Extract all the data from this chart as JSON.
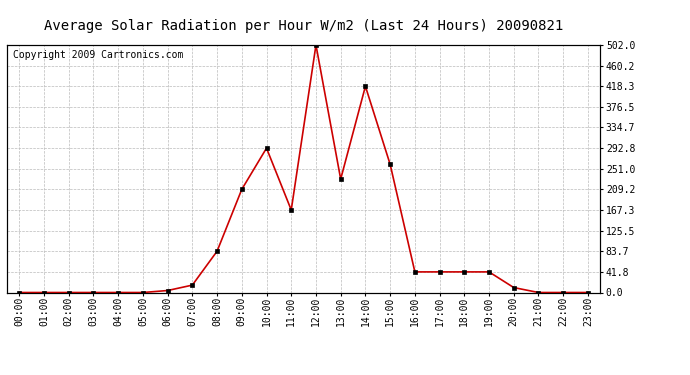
{
  "title": "Average Solar Radiation per Hour W/m2 (Last 24 Hours) 20090821",
  "copyright": "Copyright 2009 Cartronics.com",
  "hours": [
    "00:00",
    "01:00",
    "02:00",
    "03:00",
    "04:00",
    "05:00",
    "06:00",
    "07:00",
    "08:00",
    "09:00",
    "10:00",
    "11:00",
    "12:00",
    "13:00",
    "14:00",
    "15:00",
    "16:00",
    "17:00",
    "18:00",
    "19:00",
    "20:00",
    "21:00",
    "22:00",
    "23:00"
  ],
  "values": [
    0,
    0,
    0,
    0,
    0,
    0,
    4,
    15,
    83.7,
    209.2,
    292.8,
    167.3,
    502.0,
    230.0,
    418.3,
    260.0,
    41.8,
    41.8,
    41.8,
    41.8,
    10,
    0,
    0,
    0
  ],
  "line_color": "#cc0000",
  "marker_color": "#000000",
  "background_color": "#ffffff",
  "grid_color": "#bbbbbb",
  "yticks": [
    0.0,
    41.8,
    83.7,
    125.5,
    167.3,
    209.2,
    251.0,
    292.8,
    334.7,
    376.5,
    418.3,
    460.2,
    502.0
  ],
  "ylim": [
    0,
    502.0
  ],
  "title_fontsize": 10,
  "tick_fontsize": 7,
  "copyright_fontsize": 7
}
